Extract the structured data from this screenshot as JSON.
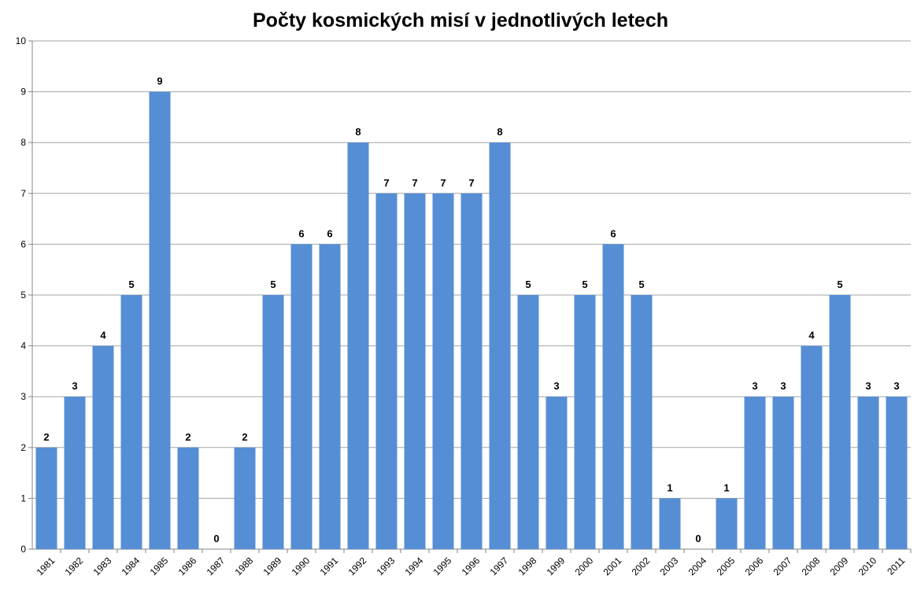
{
  "chart_data": {
    "type": "bar",
    "title": "Počty kosmických misí v jednotlivých letech",
    "xlabel": "",
    "ylabel": "",
    "ylim": [
      0,
      10
    ],
    "y_ticks": [
      "0",
      "1",
      "2",
      "3",
      "4",
      "5",
      "6",
      "7",
      "8",
      "9",
      "10"
    ],
    "grid": true,
    "legend": "none",
    "bar_color": "#558ED5",
    "grid_color": "#A6A6A6",
    "categories": [
      "1981",
      "1982",
      "1983",
      "1984",
      "1985",
      "1986",
      "1987",
      "1988",
      "1989",
      "1990",
      "1991",
      "1992",
      "1993",
      "1994",
      "1995",
      "1996",
      "1997",
      "1998",
      "1999",
      "2000",
      "2001",
      "2002",
      "2003",
      "2004",
      "2005",
      "2006",
      "2007",
      "2008",
      "2009",
      "2010",
      "2011"
    ],
    "values": [
      2,
      3,
      4,
      5,
      9,
      2,
      0,
      2,
      5,
      6,
      6,
      8,
      7,
      7,
      7,
      7,
      8,
      5,
      3,
      5,
      6,
      5,
      1,
      0,
      1,
      3,
      3,
      4,
      5,
      3,
      3
    ]
  }
}
